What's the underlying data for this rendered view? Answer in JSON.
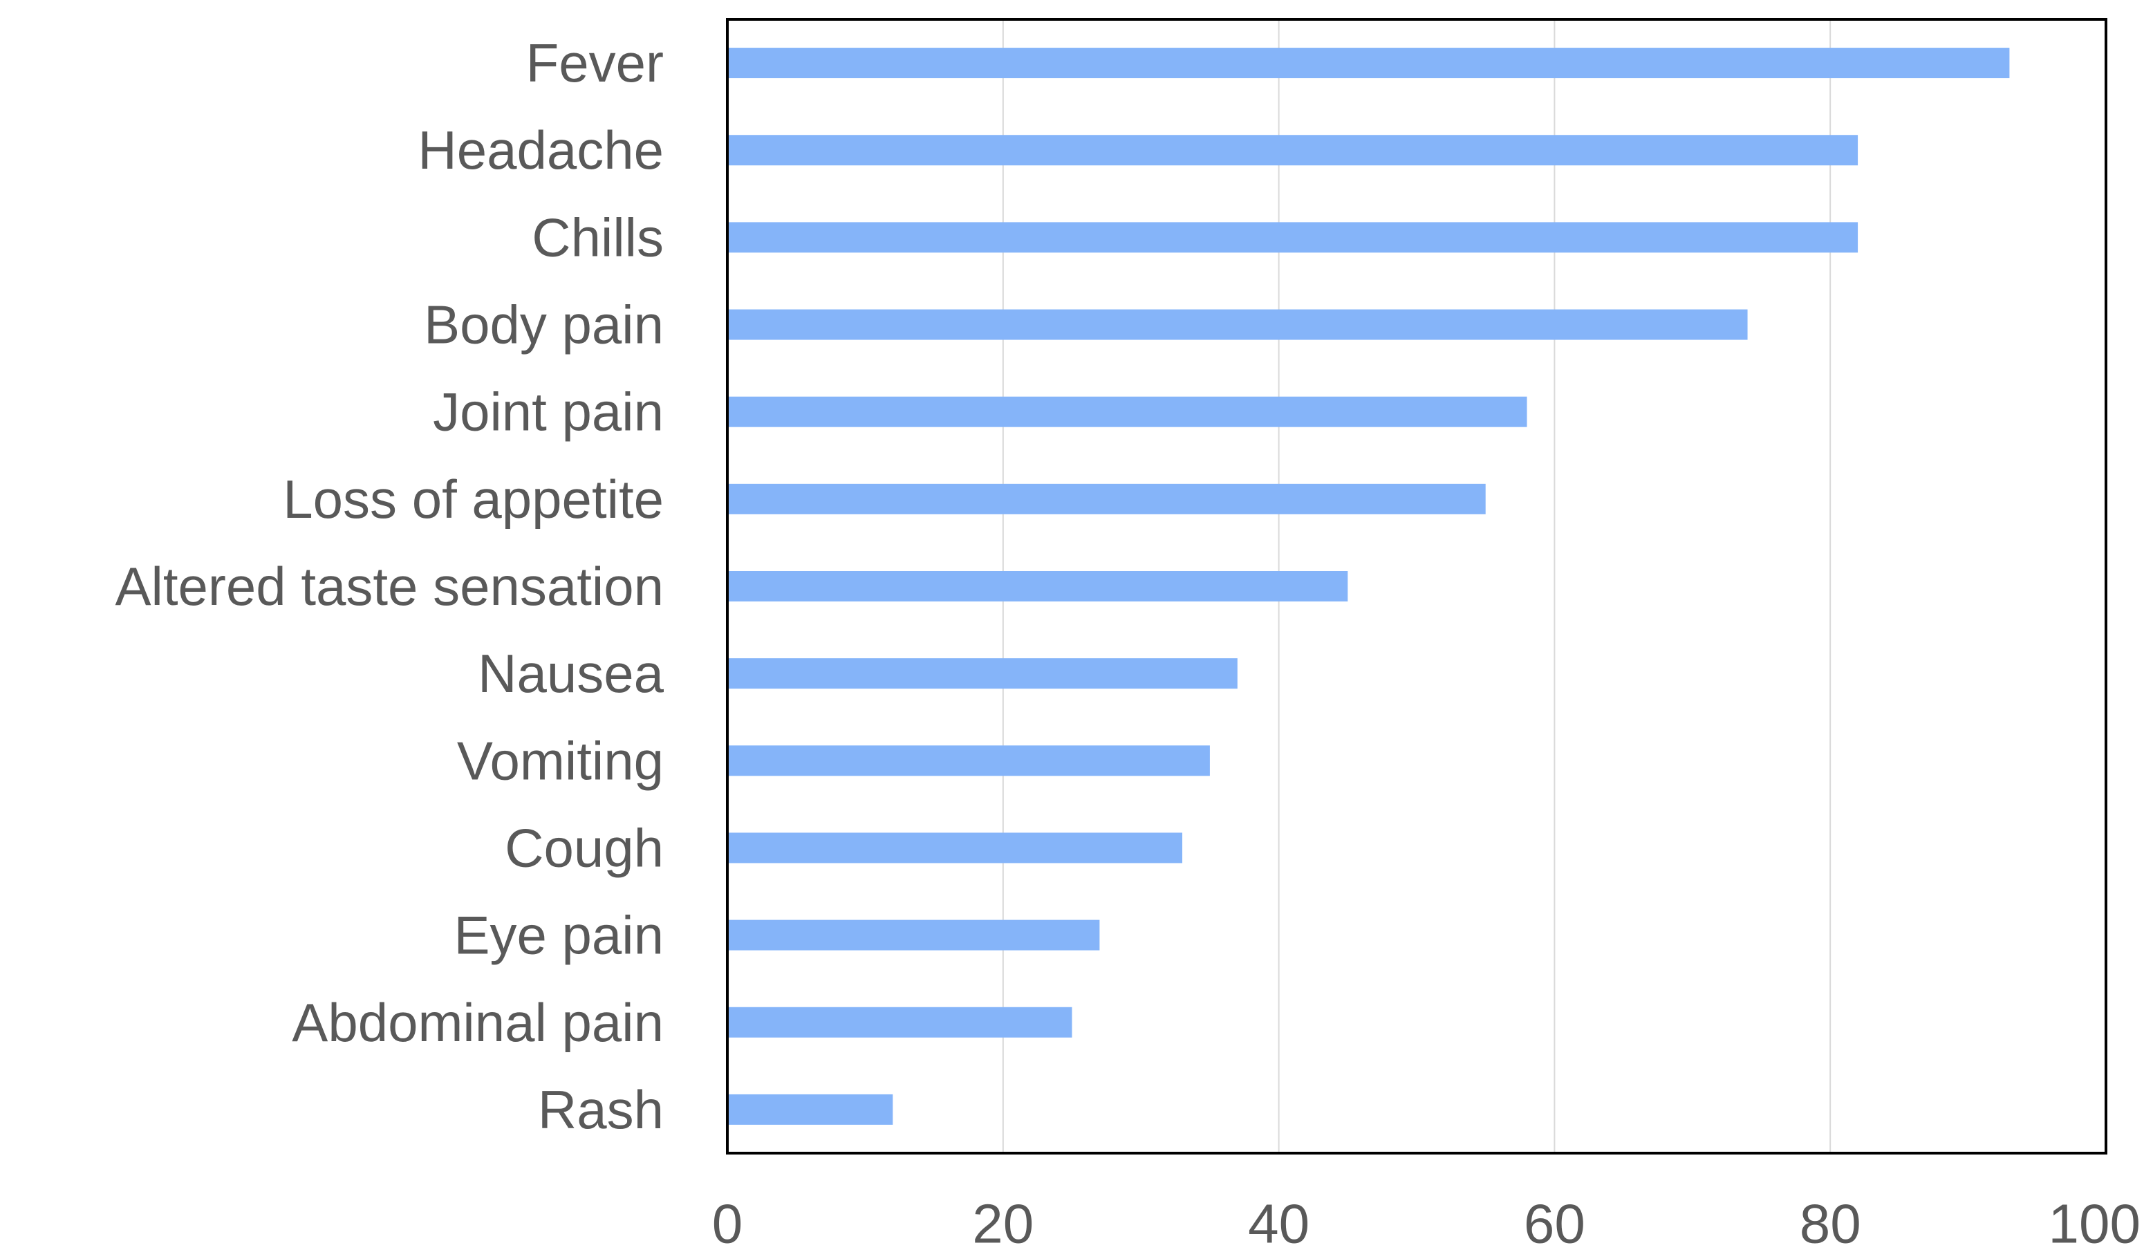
{
  "chart_data": {
    "type": "bar",
    "orientation": "horizontal",
    "categories": [
      "Fever",
      "Headache",
      "Chills",
      "Body pain",
      "Joint pain",
      "Loss of appetite",
      "Altered taste sensation",
      "Nausea",
      "Vomiting",
      "Cough",
      "Eye pain",
      "Abdominal pain",
      "Rash"
    ],
    "values": [
      93,
      82,
      82,
      74,
      58,
      55,
      45,
      37,
      35,
      33,
      27,
      25,
      12
    ],
    "x_ticks": [
      "0",
      "20",
      "40",
      "60",
      "80",
      "100"
    ],
    "xlim": [
      0,
      100
    ],
    "grid": true,
    "legend": "none",
    "bar_color": "#85b4f9",
    "axis_color": "#000000",
    "grid_color": "#d9d9d9",
    "label_color": "#595959"
  }
}
